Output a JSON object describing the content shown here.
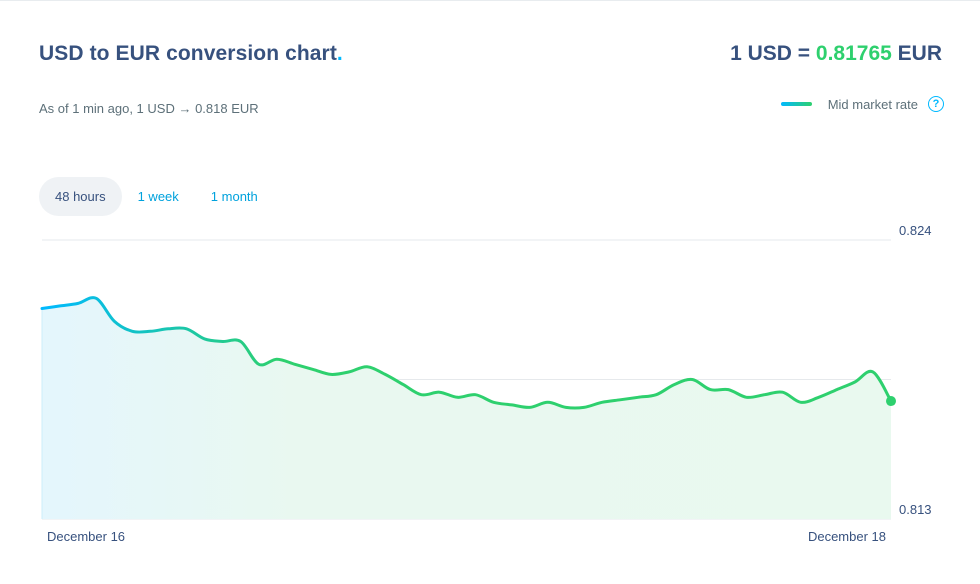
{
  "header": {
    "title": "USD to EUR conversion chart",
    "title_dot": ".",
    "rate_prefix": "1 USD = ",
    "rate_value": "0.81765",
    "rate_suffix": " EUR",
    "as_of": "As of 1 min ago, 1 USD → 0.818 EUR"
  },
  "legend": {
    "label": "Mid market rate",
    "help_glyph": "?"
  },
  "tabs": [
    {
      "label": "48 hours",
      "active": true
    },
    {
      "label": "1 week",
      "active": false
    },
    {
      "label": "1 month",
      "active": false
    }
  ],
  "colors": {
    "accent_blue": "#00b9ff",
    "accent_green": "#2ed06e",
    "text": "#37517e"
  },
  "chart_data": {
    "type": "area",
    "title": "",
    "xlabel": "",
    "ylabel": "",
    "ylim": [
      0.813,
      0.824
    ],
    "yticks": [
      "0.824",
      "0.813"
    ],
    "x_tick_labels": [
      "December 16",
      "December 18"
    ],
    "grid": true,
    "series": [
      {
        "values": [
          0.8213,
          0.8214,
          0.8215,
          0.8217,
          0.8208,
          0.8204,
          0.8204,
          0.8205,
          0.8205,
          0.8201,
          0.82,
          0.82,
          0.8191,
          0.8193,
          0.8191,
          0.8189,
          0.8187,
          0.8188,
          0.819,
          0.8187,
          0.8183,
          0.8179,
          0.818,
          0.8178,
          0.8179,
          0.8176,
          0.8175,
          0.8174,
          0.8176,
          0.8174,
          0.8174,
          0.8176,
          0.8177,
          0.8178,
          0.8179,
          0.8183,
          0.8185,
          0.8181,
          0.8181,
          0.8178,
          0.8179,
          0.818,
          0.8176,
          0.8178,
          0.8181,
          0.8184,
          0.8188,
          0.81765
        ]
      }
    ]
  }
}
